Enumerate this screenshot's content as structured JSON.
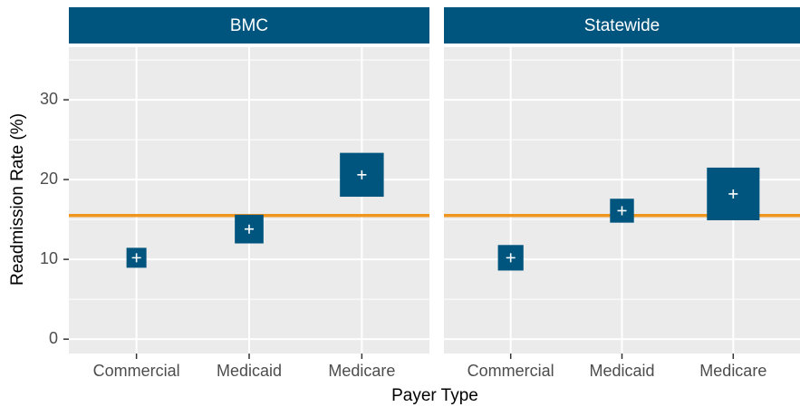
{
  "chart_data": {
    "type": "scatter",
    "ylabel": "Readmission Rate (%)",
    "xlabel": "Payer Type",
    "categories": [
      "Commercial",
      "Medicaid",
      "Medicare"
    ],
    "ylim": [
      -1.8,
      36.6
    ],
    "yticks": [
      0,
      10,
      20,
      30
    ],
    "minor_yticks": [
      5,
      15,
      25,
      35
    ],
    "grid": true,
    "color": "#00557f",
    "strip_color": "#00557f",
    "reference_line": 15.5,
    "reference_color": "#f0961e",
    "panels": [
      {
        "title": "BMC",
        "values": [
          10.2,
          13.8,
          20.6
        ],
        "sizes": [
          2.5,
          3.6,
          5.5
        ]
      },
      {
        "title": "Statewide",
        "values": [
          10.2,
          16.1,
          18.2
        ],
        "sizes": [
          3.2,
          3.0,
          6.6
        ]
      }
    ]
  }
}
